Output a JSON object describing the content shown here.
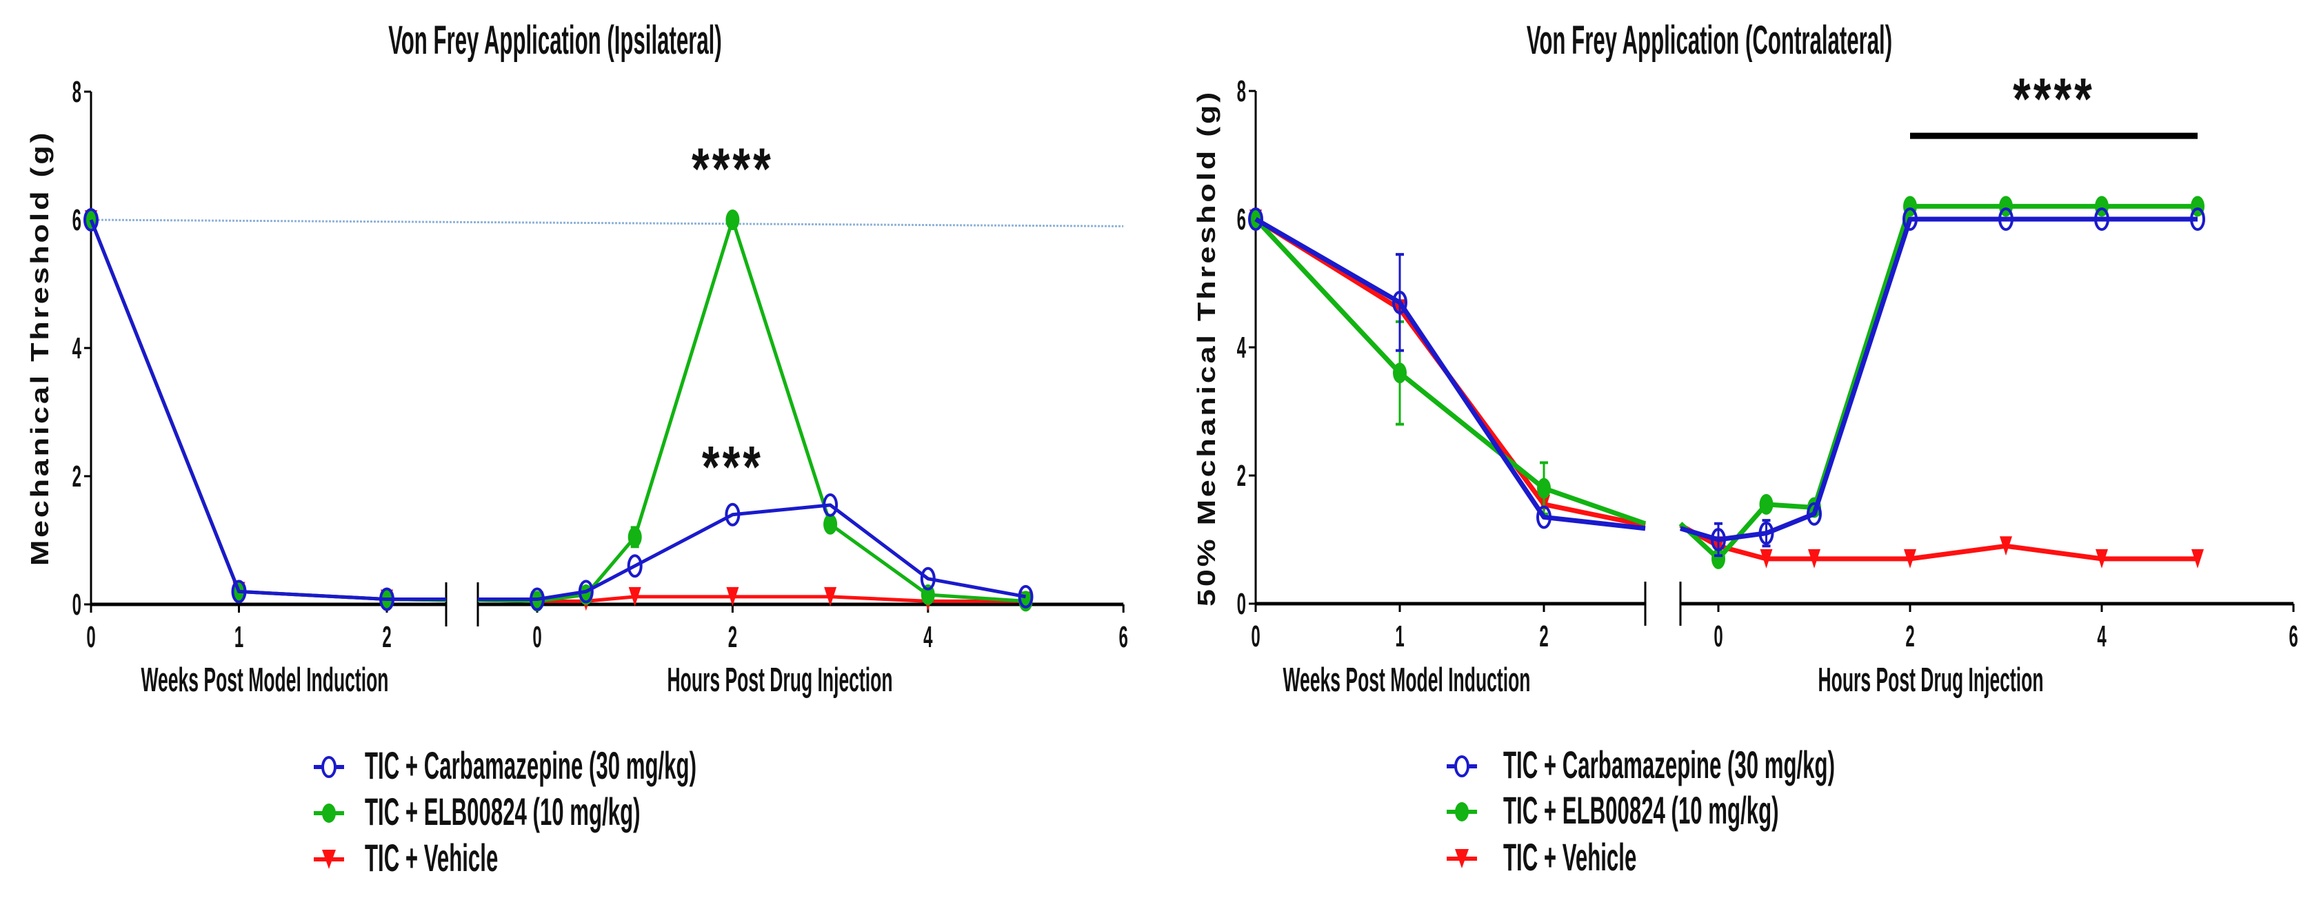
{
  "chart_data": [
    {
      "type": "line",
      "title": "Von Frey Application (Ipsilateral)",
      "ylabel": "Mechanical Threshold (g)",
      "ylim": [
        0,
        8
      ],
      "yticks": [
        "0",
        "2",
        "4",
        "6",
        "8"
      ],
      "x_segments": [
        {
          "label": "Weeks Post Model Induction",
          "ticks": [
            "0",
            "1",
            "2"
          ]
        },
        {
          "label": "Hours Post Drug  Injection",
          "ticks": [
            "0",
            "2",
            "4",
            "6"
          ]
        }
      ],
      "reference_line": {
        "y_start": 6.0,
        "y_end": 5.9,
        "style": "dotted",
        "color": "#8fb3d9"
      },
      "annotations": [
        {
          "text": "****",
          "x_hours": 2,
          "y": 6.8
        },
        {
          "text": "***",
          "x_hours": 2,
          "y": 2.15
        }
      ],
      "series": [
        {
          "name": "TIC + Carbamazepine (30 mg/kg)",
          "color": "#1a1acc",
          "marker": "open-circle",
          "weeks": {
            "x": [
              0,
              1,
              2
            ],
            "y": [
              6.0,
              0.2,
              0.08
            ]
          },
          "hours": {
            "x": [
              0,
              0.5,
              1,
              2,
              3,
              4,
              5
            ],
            "y": [
              0.08,
              0.2,
              0.6,
              1.4,
              1.55,
              0.4,
              0.12
            ]
          }
        },
        {
          "name": "TIC + ELB00824 (10 mg/kg)",
          "color": "#12b312",
          "marker": "filled-circle",
          "weeks": {
            "x": [
              0,
              1,
              2
            ],
            "y": [
              6.0,
              0.2,
              0.08
            ]
          },
          "hours": {
            "x": [
              0,
              0.5,
              1,
              2,
              3,
              4,
              5
            ],
            "y": [
              0.05,
              0.15,
              1.05,
              6.0,
              1.25,
              0.15,
              0.05
            ]
          },
          "errors": {
            "hours": [
              0,
              0,
              0.15,
              0,
              0.1,
              0,
              0
            ]
          }
        },
        {
          "name": "TIC + Vehicle",
          "color": "#ff1010",
          "marker": "down-triangle",
          "weeks": {
            "x": [
              0,
              1,
              2
            ],
            "y": [
              6.0,
              0.2,
              0.08
            ]
          },
          "hours": {
            "x": [
              0,
              0.5,
              1,
              2,
              3,
              4,
              5
            ],
            "y": [
              0.05,
              0.05,
              0.12,
              0.12,
              0.12,
              0.05,
              0.05
            ]
          }
        }
      ],
      "legend": "bottom-center"
    },
    {
      "type": "line",
      "title": "Von Frey Application (Contralateral)",
      "ylabel": "50%  Mechanical Threshold (g)",
      "ylim": [
        0,
        8
      ],
      "yticks": [
        "0",
        "2",
        "4",
        "6",
        "8"
      ],
      "x_segments": [
        {
          "label": "Weeks Post Model Induction",
          "ticks": [
            "0",
            "1",
            "2"
          ]
        },
        {
          "label": "Hours Post Drug  Injection",
          "ticks": [
            "0",
            "2",
            "4",
            "6"
          ]
        }
      ],
      "significance_bar": {
        "text": "****",
        "x_hours_start": 2,
        "x_hours_end": 5,
        "y": 7.3
      },
      "series": [
        {
          "name": "TIC + Carbamazepine (30 mg/kg)",
          "color": "#1a1acc",
          "marker": "open-circle",
          "weeks": {
            "x": [
              0,
              1,
              2
            ],
            "y": [
              6.0,
              4.7,
              1.35
            ]
          },
          "hours": {
            "x": [
              0,
              0.5,
              1,
              2,
              3,
              4,
              5
            ],
            "y": [
              1.0,
              1.1,
              1.4,
              6.0,
              6.0,
              6.0,
              6.0
            ]
          },
          "errors": {
            "weeks": [
              0,
              0.75,
              0
            ],
            "hours": [
              0.25,
              0.2,
              0,
              0,
              0,
              0,
              0
            ]
          }
        },
        {
          "name": "TIC + ELB00824 (10 mg/kg)",
          "color": "#12b312",
          "marker": "filled-circle",
          "weeks": {
            "x": [
              0,
              1,
              2
            ],
            "y": [
              6.0,
              3.6,
              1.8
            ]
          },
          "hours": {
            "x": [
              0,
              0.5,
              1,
              2,
              3,
              4,
              5
            ],
            "y": [
              0.7,
              1.55,
              1.5,
              6.2,
              6.2,
              6.2,
              6.2
            ]
          },
          "errors": {
            "weeks": [
              0,
              0.8,
              0.4
            ],
            "hours": [
              0,
              0,
              0,
              0,
              0,
              0,
              0
            ]
          }
        },
        {
          "name": "TIC + Vehicle",
          "color": "#ff1010",
          "marker": "down-triangle",
          "weeks": {
            "x": [
              0,
              1,
              2
            ],
            "y": [
              6.0,
              4.6,
              1.55
            ]
          },
          "hours": {
            "x": [
              0,
              0.5,
              1,
              2,
              3,
              4,
              5
            ],
            "y": [
              0.9,
              0.7,
              0.7,
              0.7,
              0.9,
              0.7,
              0.7
            ]
          }
        }
      ],
      "legend": "bottom-center"
    }
  ]
}
